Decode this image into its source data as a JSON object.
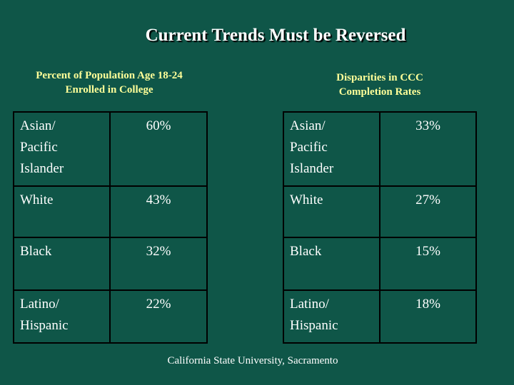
{
  "slide": {
    "title": "Current Trends Must be Reversed",
    "footer": "California State University, Sacramento"
  },
  "enrollment": {
    "heading": "Percent of Population Age 18-24 Enrolled in College",
    "rows": [
      {
        "group": "Asian/\nPacific Islander",
        "value": "60%"
      },
      {
        "group": "White",
        "value": "43%"
      },
      {
        "group": "Black",
        "value": "32%"
      },
      {
        "group": "Latino/\nHispanic",
        "value": "22%"
      }
    ]
  },
  "completion": {
    "heading": "Disparities in CCC Completion Rates",
    "rows": [
      {
        "group": "Asian/\nPacific Islander",
        "value": "33%"
      },
      {
        "group": "White",
        "value": "27%"
      },
      {
        "group": "Black",
        "value": "15%"
      },
      {
        "group": "Latino/\nHispanic",
        "value": "18%"
      }
    ]
  },
  "colors": {
    "background": "#0f5648",
    "subtitle": "#ffff99",
    "text": "#ffffff",
    "border": "#000000"
  }
}
